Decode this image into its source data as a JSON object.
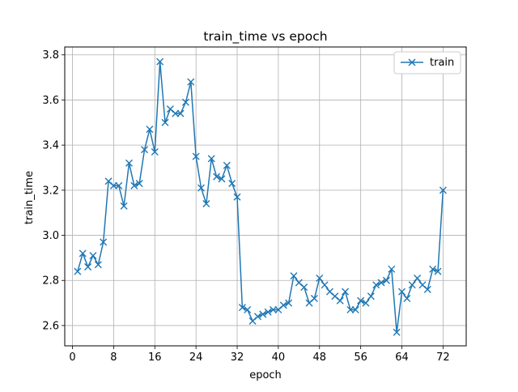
{
  "chart_data": {
    "type": "line",
    "title": "train_time vs epoch",
    "xlabel": "epoch",
    "ylabel": "train_time",
    "xlim": [
      -1.5,
      76.5
    ],
    "ylim": [
      2.51,
      3.835
    ],
    "xticks": [
      0,
      8,
      16,
      24,
      32,
      40,
      48,
      56,
      64,
      72
    ],
    "yticks": [
      2.6,
      2.8,
      3.0,
      3.2,
      3.4,
      3.6,
      3.8
    ],
    "ytick_labels": [
      "2.6",
      "2.8",
      "3.0",
      "3.2",
      "3.4",
      "3.6",
      "3.8"
    ],
    "grid": true,
    "legend_position": "top-right",
    "series": [
      {
        "name": "train",
        "color": "#1f77b4",
        "marker": "x",
        "x": [
          1,
          2,
          3,
          4,
          5,
          6,
          7,
          8,
          9,
          10,
          11,
          12,
          13,
          14,
          15,
          16,
          17,
          18,
          19,
          20,
          21,
          22,
          23,
          24,
          25,
          26,
          27,
          28,
          29,
          30,
          31,
          32,
          33,
          34,
          35,
          36,
          37,
          38,
          39,
          40,
          41,
          42,
          43,
          44,
          45,
          46,
          47,
          48,
          49,
          50,
          51,
          52,
          53,
          54,
          55,
          56,
          57,
          58,
          59,
          60,
          61,
          62,
          63,
          64,
          65,
          66,
          67,
          68,
          69,
          70,
          71,
          72
        ],
        "values": [
          2.84,
          2.92,
          2.86,
          2.91,
          2.87,
          2.97,
          3.24,
          3.22,
          3.22,
          3.13,
          3.32,
          3.22,
          3.23,
          3.38,
          3.47,
          3.37,
          3.77,
          3.5,
          3.56,
          3.54,
          3.54,
          3.59,
          3.68,
          3.35,
          3.21,
          3.14,
          3.34,
          3.26,
          3.25,
          3.31,
          3.23,
          3.17,
          2.68,
          2.67,
          2.62,
          2.64,
          2.65,
          2.66,
          2.67,
          2.67,
          2.69,
          2.7,
          2.82,
          2.79,
          2.77,
          2.7,
          2.72,
          2.81,
          2.78,
          2.75,
          2.73,
          2.71,
          2.75,
          2.67,
          2.67,
          2.71,
          2.7,
          2.73,
          2.78,
          2.79,
          2.8,
          2.85,
          2.57,
          2.75,
          2.72,
          2.78,
          2.81,
          2.78,
          2.76,
          2.85,
          2.84,
          3.2
        ]
      }
    ]
  }
}
